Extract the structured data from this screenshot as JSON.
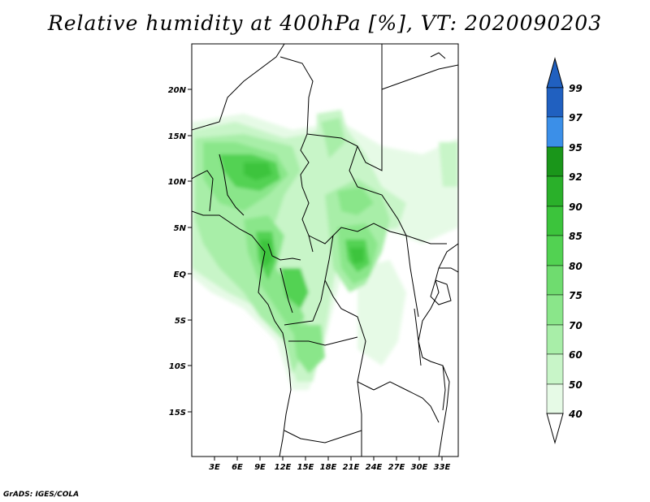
{
  "title": "Relative humidity at 400hPa [%], VT: 2020090203",
  "credit": "GrADS: IGES/COLA",
  "map": {
    "region": "Central Africa",
    "projection": "lat-lon",
    "lat_labels": [
      "20N",
      "15N",
      "10N",
      "5N",
      "EQ",
      "5S",
      "10S",
      "15S"
    ],
    "lon_labels": [
      "3E",
      "6E",
      "9E",
      "12E",
      "15E",
      "18E",
      "21E",
      "24E",
      "27E",
      "30E",
      "33E"
    ],
    "colors": {
      "land_outline": "#000000",
      "rh_40": "#e6fae6",
      "rh_50": "#c8f5c8",
      "rh_60": "#a8eea8",
      "rh_70": "#8ae68a",
      "rh_75": "#6fdc6f",
      "rh_80": "#52d252",
      "rh_85": "#3cc43c",
      "rh_90": "#2ab02a",
      "rh_92": "#1a961a",
      "rh_95": "#3b8fe8",
      "rh_97": "#2f74d4",
      "rh_99": "#2060c0"
    }
  },
  "colorbar": {
    "labels": [
      "40",
      "50",
      "60",
      "70",
      "75",
      "80",
      "85",
      "90",
      "92",
      "95",
      "97",
      "99"
    ],
    "colors": [
      "#ffffff",
      "#e6fae6",
      "#c8f5c8",
      "#a8eea8",
      "#8ae68a",
      "#6fdc6f",
      "#52d252",
      "#3cc43c",
      "#2ab02a",
      "#1a961a",
      "#3b8fe8",
      "#2f74d4",
      "#2060c0"
    ]
  }
}
